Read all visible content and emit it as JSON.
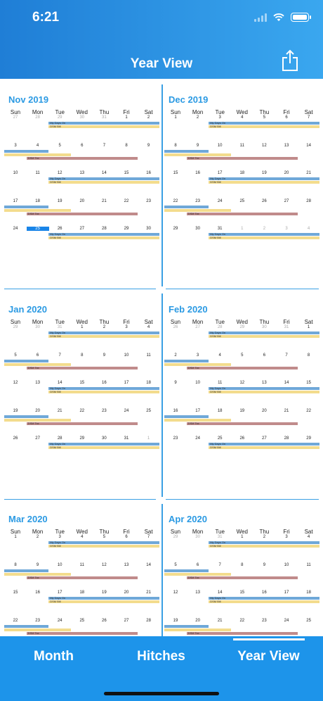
{
  "status_bar": {
    "time": "6:21"
  },
  "nav": {
    "title": "Year View",
    "share_icon": "share-icon"
  },
  "weekdays": [
    "Sun",
    "Mon",
    "Tue",
    "Wed",
    "Thu",
    "Fri",
    "Sat"
  ],
  "event_labels": {
    "days_on": "My Days On",
    "bill": "DSM Bill",
    "tax": "DSM Tax"
  },
  "months": [
    {
      "title": "Nov 2019",
      "weeks": [
        [
          "27",
          "28",
          "29",
          "30",
          "31",
          "1",
          "2"
        ],
        [
          "3",
          "4",
          "5",
          "6",
          "7",
          "8",
          "9"
        ],
        [
          "10",
          "11",
          "12",
          "13",
          "14",
          "15",
          "16"
        ],
        [
          "17",
          "18",
          "19",
          "20",
          "21",
          "22",
          "23"
        ],
        [
          "24",
          "25",
          "26",
          "27",
          "28",
          "29",
          "30"
        ]
      ],
      "today": [
        4,
        1
      ]
    },
    {
      "title": "Dec 2019",
      "weeks": [
        [
          "1",
          "2",
          "3",
          "4",
          "5",
          "6",
          "7"
        ],
        [
          "8",
          "9",
          "10",
          "11",
          "12",
          "13",
          "14"
        ],
        [
          "15",
          "16",
          "17",
          "18",
          "19",
          "20",
          "21"
        ],
        [
          "22",
          "23",
          "24",
          "25",
          "26",
          "27",
          "28"
        ],
        [
          "29",
          "30",
          "31",
          "1",
          "2",
          "3",
          "4"
        ]
      ]
    },
    {
      "title": "Jan 2020",
      "weeks": [
        [
          "29",
          "30",
          "31",
          "1",
          "2",
          "3",
          "4"
        ],
        [
          "5",
          "6",
          "7",
          "8",
          "9",
          "10",
          "11"
        ],
        [
          "12",
          "13",
          "14",
          "15",
          "16",
          "17",
          "18"
        ],
        [
          "19",
          "20",
          "21",
          "22",
          "23",
          "24",
          "25"
        ],
        [
          "26",
          "27",
          "28",
          "29",
          "30",
          "31",
          "1"
        ]
      ]
    },
    {
      "title": "Feb 2020",
      "weeks": [
        [
          "26",
          "27",
          "28",
          "29",
          "30",
          "31",
          "1"
        ],
        [
          "2",
          "3",
          "4",
          "5",
          "6",
          "7",
          "8"
        ],
        [
          "9",
          "10",
          "11",
          "12",
          "13",
          "14",
          "15"
        ],
        [
          "16",
          "17",
          "18",
          "19",
          "20",
          "21",
          "22"
        ],
        [
          "23",
          "24",
          "25",
          "26",
          "27",
          "28",
          "29"
        ]
      ]
    },
    {
      "title": "Mar 2020",
      "weeks": [
        [
          "1",
          "2",
          "3",
          "4",
          "5",
          "6",
          "7"
        ],
        [
          "8",
          "9",
          "10",
          "11",
          "12",
          "13",
          "14"
        ],
        [
          "15",
          "16",
          "17",
          "18",
          "19",
          "20",
          "21"
        ],
        [
          "22",
          "23",
          "24",
          "25",
          "26",
          "27",
          "28"
        ]
      ]
    },
    {
      "title": "Apr 2020",
      "weeks": [
        [
          "29",
          "30",
          "31",
          "1",
          "2",
          "3",
          "4"
        ],
        [
          "5",
          "6",
          "7",
          "8",
          "9",
          "10",
          "11"
        ],
        [
          "12",
          "13",
          "14",
          "15",
          "16",
          "17",
          "18"
        ],
        [
          "19",
          "20",
          "21",
          "22",
          "23",
          "24",
          "25"
        ]
      ]
    }
  ],
  "tabs": [
    {
      "label": "Month"
    },
    {
      "label": "Hitches"
    },
    {
      "label": "Year View",
      "selected": true
    }
  ],
  "colors": {
    "accent": "#2b9ae3",
    "days_on": "#6fa8d8",
    "bill": "#f3dc8d",
    "tax": "#c08b8b",
    "today": "#1a85e8"
  }
}
